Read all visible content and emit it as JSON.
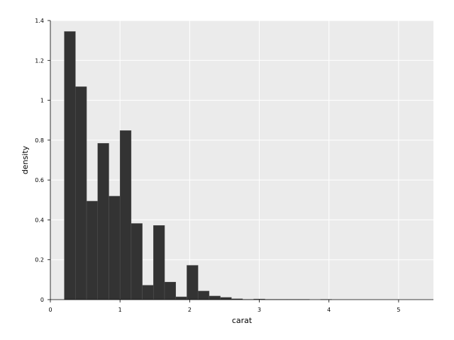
{
  "chart_data": {
    "type": "bar",
    "title": "",
    "xlabel": "carat",
    "ylabel": "density",
    "xlim": [
      0,
      5.5
    ],
    "ylim": [
      0,
      1.4
    ],
    "grid": true,
    "legend": "none",
    "colors": {
      "panel": "#ebebeb",
      "grid": "#ffffff",
      "bar": "#333333",
      "bar_edge": "#555555"
    },
    "x_ticks": [
      {
        "value": 0,
        "label": "0"
      },
      {
        "value": 1,
        "label": "1"
      },
      {
        "value": 2,
        "label": "2"
      },
      {
        "value": 3,
        "label": "3"
      },
      {
        "value": 4,
        "label": "4"
      },
      {
        "value": 5,
        "label": "5"
      }
    ],
    "y_ticks": [
      {
        "value": 0,
        "label": "0"
      },
      {
        "value": 0.2,
        "label": "0.2"
      },
      {
        "value": 0.4,
        "label": "0.4"
      },
      {
        "value": 0.6,
        "label": "0.6"
      },
      {
        "value": 0.8,
        "label": "0.8"
      },
      {
        "value": 1.0,
        "label": "1"
      },
      {
        "value": 1.2,
        "label": "1.2"
      },
      {
        "value": 1.4,
        "label": "1.4"
      }
    ],
    "bin_start": 0.2,
    "bin_width": 0.16,
    "values": [
      1.345,
      1.068,
      0.494,
      0.784,
      0.519,
      0.848,
      0.382,
      0.072,
      0.372,
      0.088,
      0.014,
      0.172,
      0.043,
      0.018,
      0.011,
      0.004,
      0.001,
      0.003,
      0.001,
      0.001,
      0.001,
      0.001,
      0.0,
      0.001,
      0.0,
      0.0,
      0.0,
      0.0,
      0.0,
      0.0,
      0.0,
      0.0
    ]
  }
}
